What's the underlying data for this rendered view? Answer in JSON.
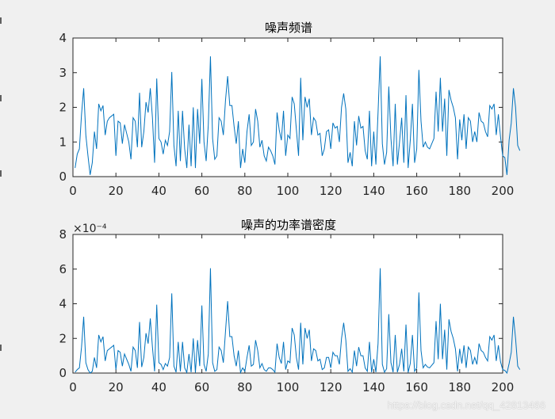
{
  "window": {
    "watermark": "https://blog.csdn.net/qq_42813466"
  },
  "colors": {
    "line": "#0072bd",
    "background": "#f0f0f0",
    "axes_bg": "#ffffff",
    "axis": "#262626"
  },
  "chart_data": [
    {
      "type": "line",
      "title": "噪声频谱",
      "xlabel": "",
      "ylabel": "",
      "xlim": [
        0,
        200
      ],
      "ylim": [
        0,
        4
      ],
      "xticks": [
        0,
        20,
        40,
        60,
        80,
        100,
        120,
        140,
        160,
        180,
        200
      ],
      "yticks": [
        0,
        1,
        2,
        3,
        4
      ],
      "ytick_labels": [
        "0",
        "1",
        "2",
        "3",
        "4"
      ],
      "exponent_label": "",
      "grid": false,
      "x_start": 1,
      "series": [
        {
          "values": [
            0.25,
            0.65,
            0.8,
            1.8,
            2.55,
            1.2,
            0.6,
            0.05,
            0.4,
            1.3,
            0.8,
            2.1,
            1.9,
            2.05,
            1.2,
            1.6,
            1.7,
            1.75,
            1.8,
            0.6,
            1.6,
            1.55,
            0.95,
            1.5,
            1.25,
            1.0,
            0.5,
            1.7,
            1.6,
            0.85,
            2.42,
            0.85,
            1.3,
            2.15,
            1.85,
            2.55,
            1.7,
            0.4,
            2.83,
            1.1,
            1.0,
            0.65,
            1.05,
            0.9,
            1.3,
            3.02,
            0.9,
            0.3,
            1.9,
            0.45,
            1.9,
            0.8,
            0.25,
            1.5,
            0.3,
            2.0,
            0.25,
            1.95,
            0.95,
            2.82,
            1.0,
            0.45,
            1.5,
            3.47,
            1.1,
            0.5,
            0.6,
            1.7,
            1.6,
            1.2,
            2.2,
            2.9,
            2.05,
            2.05,
            1.45,
            0.95,
            1.6,
            0.25,
            0.8,
            0.4,
            1.3,
            1.8,
            0.9,
            1.0,
            1.95,
            1.6,
            0.85,
            1.05,
            0.6,
            0.45,
            0.85,
            0.75,
            0.6,
            0.35,
            1.85,
            1.35,
            1.05,
            1.9,
            0.6,
            1.2,
            1.1,
            2.3,
            2.1,
            1.35,
            0.6,
            2.85,
            1.05,
            2.3,
            2.0,
            2.25,
            1.2,
            1.7,
            1.6,
            1.2,
            1.25,
            0.6,
            0.8,
            1.3,
            1.35,
            0.8,
            1.55,
            1.4,
            1.45,
            1.0,
            2.0,
            2.4,
            1.95,
            0.4,
            0.7,
            0.3,
            1.6,
            0.9,
            1.75,
            1.4,
            1.45,
            0.75,
            0.5,
            1.9,
            0.3,
            1.3,
            0.35,
            1.85,
            3.47,
            0.95,
            0.35,
            0.7,
            2.6,
            1.1,
            0.3,
            2.1,
            0.35,
            1.0,
            1.7,
            0.4,
            2.35,
            0.25,
            1.05,
            2.1,
            0.4,
            0.8,
            3.08,
            1.6,
            0.85,
            1.0,
            0.85,
            0.8,
            0.95,
            1.1,
            2.45,
            1.3,
            2.85,
            1.3,
            2.25,
            0.6,
            2.5,
            2.2,
            2.0,
            1.7,
            0.5,
            1.65,
            1.05,
            1.8,
            0.8,
            1.7,
            1.6,
            1.0,
            1.3,
            1.0,
            1.85,
            1.6,
            1.55,
            1.3,
            1.15,
            2.05,
            1.95,
            2.1,
            1.2,
            1.8,
            1.15,
            0.6,
            0.55,
            0.05,
            1.05,
            1.55,
            2.55,
            2.0,
            0.9,
            0.75
          ]
        }
      ]
    },
    {
      "type": "line",
      "title": "噪声的功率谱密度",
      "xlabel": "",
      "ylabel": "",
      "xlim": [
        0,
        200
      ],
      "ylim": [
        0,
        8
      ],
      "xticks": [
        0,
        20,
        40,
        60,
        80,
        100,
        120,
        140,
        160,
        180,
        200
      ],
      "yticks": [
        0,
        2,
        4,
        6,
        8
      ],
      "ytick_labels": [
        "0",
        "2",
        "4",
        "6",
        "8"
      ],
      "exponent_label": "×10⁻⁴",
      "grid": false,
      "x_start": 1,
      "series": [
        {
          "values": [
            0.05,
            0.2,
            0.3,
            1.5,
            3.25,
            0.6,
            0.2,
            0.0,
            0.1,
            0.9,
            0.3,
            2.2,
            1.8,
            2.1,
            0.7,
            1.3,
            1.4,
            1.5,
            1.6,
            0.2,
            1.3,
            1.2,
            0.4,
            1.1,
            0.8,
            0.5,
            0.1,
            1.5,
            1.3,
            0.3,
            2.95,
            0.35,
            0.9,
            2.3,
            1.7,
            3.15,
            1.5,
            0.1,
            3.95,
            0.6,
            0.5,
            0.2,
            0.55,
            0.4,
            0.9,
            4.6,
            0.4,
            0.05,
            1.8,
            0.1,
            1.8,
            0.3,
            0.03,
            1.1,
            0.05,
            2.0,
            0.03,
            1.9,
            0.4,
            3.9,
            0.5,
            0.1,
            1.1,
            6.05,
            0.6,
            0.1,
            0.2,
            1.5,
            1.3,
            0.6,
            2.4,
            4.15,
            2.1,
            2.1,
            1.0,
            0.4,
            1.3,
            0.03,
            0.3,
            0.1,
            0.9,
            1.6,
            0.4,
            0.5,
            1.9,
            1.3,
            0.3,
            0.55,
            0.2,
            0.1,
            0.3,
            0.3,
            0.2,
            0.05,
            1.7,
            0.9,
            0.55,
            1.8,
            0.2,
            0.7,
            0.6,
            2.6,
            2.2,
            0.9,
            0.2,
            2.9,
            0.5,
            2.6,
            2.0,
            2.5,
            0.7,
            1.4,
            1.3,
            0.7,
            0.8,
            0.2,
            0.3,
            0.9,
            0.9,
            0.3,
            1.2,
            1.0,
            1.0,
            0.5,
            2.0,
            2.9,
            1.9,
            0.1,
            0.25,
            0.05,
            1.3,
            0.4,
            1.5,
            1.0,
            1.0,
            0.3,
            0.1,
            1.8,
            0.05,
            0.8,
            0.05,
            1.7,
            6.05,
            0.5,
            0.05,
            0.25,
            3.4,
            0.6,
            0.05,
            2.2,
            0.05,
            0.5,
            1.4,
            0.1,
            2.8,
            0.03,
            0.55,
            2.2,
            0.1,
            0.3,
            4.65,
            1.3,
            0.3,
            0.5,
            0.35,
            0.3,
            0.45,
            0.6,
            3.0,
            0.8,
            4.0,
            0.8,
            2.5,
            0.2,
            3.1,
            2.4,
            2.0,
            1.4,
            0.1,
            1.4,
            0.55,
            1.6,
            0.3,
            1.5,
            1.3,
            0.5,
            0.9,
            0.5,
            1.7,
            1.3,
            1.2,
            0.9,
            0.7,
            2.1,
            1.9,
            2.2,
            0.7,
            1.6,
            0.65,
            0.2,
            0.15,
            0.0,
            0.55,
            1.2,
            3.25,
            2.0,
            0.4,
            0.2
          ]
        }
      ]
    }
  ]
}
